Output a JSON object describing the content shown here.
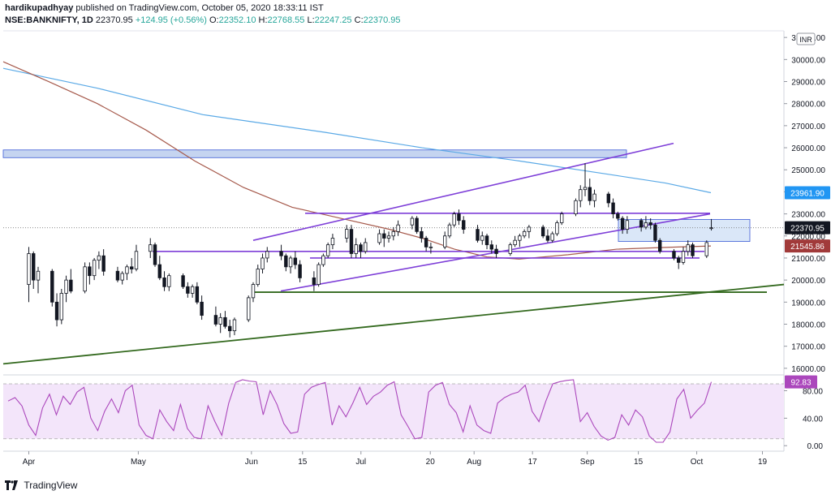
{
  "header": {
    "author": "hardikupadhyay",
    "published": "published on TradingView.com, October 05, 2020 18:33:11 IST",
    "symbol": "NSE:BANKNIFTY, 1D",
    "last": "22370.95",
    "change": "+124.95 (+0.56%)",
    "ohlc_o_label": "O:",
    "ohlc_o": "22352.10",
    "ohlc_h_label": "H:",
    "ohlc_h": "22768.55",
    "ohlc_l_label": "L:",
    "ohlc_l": "22247.25",
    "ohlc_c_label": "C:",
    "ohlc_c": "22370.95"
  },
  "footer": {
    "brand": "TradingView"
  },
  "colors": {
    "up": "#ffffff",
    "down": "#131722",
    "wick": "#131722",
    "ema_long": "#5aa9e6",
    "ema_mid": "#a65a4c",
    "channel": "#7e3fd8",
    "trend": "#33691e",
    "zone": "#c5d4f0",
    "rsi": "#ab47bc",
    "rsi_band": "#f3e5fa",
    "price_label_bg": "#131722",
    "ema_mid_label": "#a13a3a",
    "ema_long_label": "#2196f3",
    "rsi_label": "#ab47bc"
  },
  "chart_data": [
    {
      "type": "candlestick",
      "title": "NSE:BANKNIFTY, 1D",
      "currency": "INR",
      "x_range": [
        "2020-03-25",
        "2020-10-24"
      ],
      "ylim": [
        15700,
        31300
      ],
      "x_ticks": [
        "Apr",
        "May",
        "Jun",
        "15",
        "Jul",
        "20",
        "Aug",
        "17",
        "Sep",
        "15",
        "Oct",
        "19"
      ],
      "y_ticks": [
        "31000.00",
        "30000.00",
        "29000.00",
        "28000.00",
        "27000.00",
        "26000.00",
        "25000.00",
        "24000.00",
        "23000.00",
        "22000.00",
        "21000.00",
        "20000.00",
        "19000.00",
        "18000.00",
        "17000.00",
        "16000.00"
      ],
      "price_labels": {
        "last": "22370.95",
        "ema_mid": "21545.86",
        "ema_long": "23961.90"
      },
      "candles_ohlc": [
        [
          19800,
          21500,
          19000,
          21200
        ],
        [
          21200,
          21300,
          19600,
          20000
        ],
        [
          20000,
          20600,
          19400,
          20400
        ],
        [
          20400,
          20500,
          18800,
          19000
        ],
        [
          19000,
          19400,
          17900,
          18200
        ],
        [
          18200,
          19600,
          18000,
          19400
        ],
        [
          19400,
          20200,
          19000,
          20000
        ],
        [
          20000,
          20500,
          19400,
          19500
        ],
        [
          19500,
          20800,
          19400,
          20600
        ],
        [
          20600,
          20800,
          19800,
          20200
        ],
        [
          20200,
          21000,
          20000,
          20900
        ],
        [
          20900,
          21300,
          20500,
          21100
        ],
        [
          21100,
          21400,
          20200,
          20400
        ],
        [
          20400,
          20600,
          19900,
          20000
        ],
        [
          20000,
          20400,
          19800,
          20300
        ],
        [
          20300,
          20700,
          20000,
          20600
        ],
        [
          20600,
          21000,
          20300,
          20500
        ],
        [
          20500,
          21600,
          20400,
          21300
        ],
        [
          21300,
          21900,
          21000,
          21600
        ],
        [
          21600,
          21700,
          20600,
          20700
        ],
        [
          20700,
          21100,
          20000,
          20100
        ],
        [
          20100,
          20400,
          19500,
          19700
        ],
        [
          19700,
          20300,
          19500,
          20200
        ],
        [
          20200,
          20300,
          19600,
          19700
        ],
        [
          19700,
          19900,
          19200,
          19400
        ],
        [
          19400,
          19800,
          19200,
          19700
        ],
        [
          19700,
          19900,
          18900,
          19000
        ],
        [
          19000,
          19300,
          18200,
          18400
        ],
        [
          18400,
          18800,
          17900,
          18000
        ],
        [
          18000,
          18500,
          17600,
          18300
        ],
        [
          18300,
          18600,
          17800,
          17900
        ],
        [
          17900,
          18200,
          17400,
          17700
        ],
        [
          17700,
          18300,
          17500,
          18200
        ],
        [
          18200,
          19300,
          18100,
          19200
        ],
        [
          19200,
          19900,
          19000,
          19800
        ],
        [
          19800,
          20700,
          19700,
          20500
        ],
        [
          20500,
          21200,
          20300,
          21000
        ],
        [
          21000,
          21500,
          20800,
          21300
        ],
        [
          21300,
          21600,
          20900,
          21100
        ],
        [
          21100,
          21200,
          20400,
          20600
        ],
        [
          20600,
          21100,
          20300,
          21000
        ],
        [
          21000,
          21300,
          20500,
          20700
        ],
        [
          20700,
          20900,
          19900,
          20100
        ],
        [
          20100,
          20400,
          19500,
          19800
        ],
        [
          19800,
          20800,
          19700,
          20700
        ],
        [
          20700,
          21200,
          20600,
          21100
        ],
        [
          21100,
          21700,
          21000,
          21600
        ],
        [
          21600,
          22100,
          21400,
          21900
        ],
        [
          21900,
          22500,
          21700,
          22300
        ],
        [
          22300,
          22500,
          21000,
          21200
        ],
        [
          21200,
          21900,
          21000,
          21600
        ],
        [
          21600,
          21700,
          21000,
          21300
        ],
        [
          21300,
          21900,
          21200,
          21700
        ],
        [
          21700,
          22300,
          21600,
          22100
        ],
        [
          22100,
          22300,
          21500,
          21900
        ],
        [
          21900,
          22200,
          21700,
          22000
        ],
        [
          22000,
          22400,
          21800,
          22200
        ],
        [
          22200,
          22700,
          22000,
          22500
        ],
        [
          22500,
          22900,
          22300,
          22800
        ],
        [
          22800,
          22900,
          22100,
          22200
        ],
        [
          22200,
          22400,
          21700,
          21900
        ],
        [
          21900,
          22000,
          21300,
          21500
        ],
        [
          21500,
          21700,
          21200,
          21500
        ],
        [
          21500,
          22200,
          21400,
          22000
        ],
        [
          22000,
          22600,
          21900,
          22500
        ],
        [
          22500,
          23100,
          22400,
          23000
        ],
        [
          23000,
          23200,
          22500,
          22700
        ],
        [
          22700,
          22900,
          22100,
          22300
        ],
        [
          22300,
          22500,
          21700,
          21800
        ],
        [
          21800,
          22200,
          21600,
          22000
        ],
        [
          22000,
          22100,
          21400,
          21600
        ],
        [
          21600,
          21800,
          21200,
          21400
        ],
        [
          21400,
          21600,
          21000,
          21200
        ],
        [
          21200,
          21700,
          21100,
          21600
        ],
        [
          21600,
          22000,
          21500,
          21800
        ],
        [
          21800,
          22100,
          21500,
          22000
        ],
        [
          22000,
          22300,
          21900,
          22200
        ],
        [
          22200,
          22500,
          21900,
          22400
        ],
        [
          22400,
          22500,
          21900,
          22000
        ],
        [
          22000,
          22300,
          21700,
          21800
        ],
        [
          21800,
          22200,
          21700,
          22100
        ],
        [
          22100,
          22700,
          22000,
          22600
        ],
        [
          22600,
          23100,
          22500,
          23000
        ],
        [
          23000,
          23700,
          22900,
          23600
        ],
        [
          23600,
          24300,
          23300,
          24100
        ],
        [
          24100,
          25300,
          23800,
          24200
        ],
        [
          24200,
          24600,
          23400,
          23600
        ],
        [
          23600,
          24100,
          23300,
          23900
        ],
        [
          23900,
          24000,
          23300,
          23500
        ],
        [
          23500,
          23700,
          22800,
          23000
        ],
        [
          23000,
          23100,
          22700,
          22800
        ],
        [
          22800,
          22900,
          22100,
          22300
        ],
        [
          22300,
          22900,
          22100,
          22700
        ],
        [
          22700,
          22800,
          22200,
          22400
        ],
        [
          22400,
          22900,
          22300,
          22600
        ],
        [
          22600,
          22800,
          22300,
          22500
        ],
        [
          22500,
          22600,
          21700,
          21800
        ],
        [
          21800,
          21900,
          21200,
          21300
        ],
        [
          21300,
          21400,
          20900,
          21000
        ],
        [
          21000,
          21100,
          20500,
          20800
        ],
        [
          20800,
          21500,
          20700,
          21300
        ],
        [
          21300,
          21800,
          21100,
          21600
        ],
        [
          21600,
          21700,
          21000,
          21100
        ],
        [
          21100,
          21800,
          21000,
          21700
        ],
        [
          22352.1,
          22768.55,
          22247.25,
          22370.95
        ]
      ]
    },
    {
      "type": "line",
      "title": "RSI",
      "ylim": [
        -8,
        103
      ],
      "y_ticks": [
        "80.00",
        "40.00",
        "0.00"
      ],
      "bands": [
        10,
        90
      ],
      "last_value": "92.83",
      "values": [
        65,
        70,
        58,
        30,
        15,
        55,
        75,
        45,
        72,
        60,
        78,
        85,
        40,
        22,
        50,
        68,
        48,
        80,
        88,
        30,
        15,
        10,
        52,
        35,
        22,
        60,
        25,
        12,
        10,
        58,
        35,
        15,
        62,
        92,
        96,
        94,
        93,
        45,
        80,
        60,
        32,
        18,
        20,
        75,
        85,
        89,
        92,
        30,
        58,
        42,
        62,
        85,
        60,
        72,
        78,
        88,
        93,
        45,
        28,
        10,
        12,
        78,
        88,
        92,
        60,
        48,
        20,
        58,
        30,
        22,
        18,
        62,
        70,
        75,
        78,
        88,
        50,
        35,
        65,
        90,
        93,
        95,
        96,
        35,
        48,
        28,
        14,
        8,
        12,
        45,
        30,
        52,
        42,
        14,
        5,
        5,
        20,
        68,
        82,
        40,
        52,
        62,
        92.83
      ]
    }
  ]
}
